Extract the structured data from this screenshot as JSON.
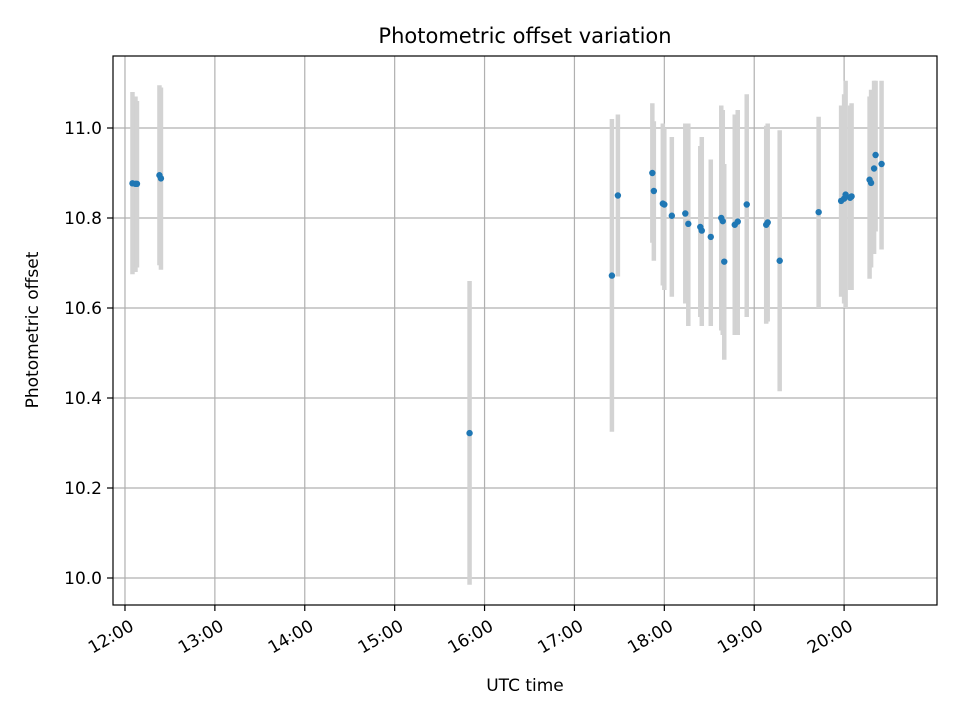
{
  "chart_data": {
    "type": "scatter",
    "title": "Photometric offset variation",
    "xlabel": "UTC time",
    "ylabel": "Photometric offset",
    "grid": true,
    "xlim": [
      "11:52",
      "21:02"
    ],
    "ylim": [
      9.94,
      11.16
    ],
    "x_ticks": [
      "12:00",
      "13:00",
      "14:00",
      "15:00",
      "16:00",
      "17:00",
      "18:00",
      "19:00",
      "20:00"
    ],
    "y_ticks": [
      10.0,
      10.2,
      10.4,
      10.6,
      10.8,
      11.0
    ],
    "y_tick_labels": [
      "10.0",
      "10.2",
      "10.4",
      "10.6",
      "10.8",
      "11.0"
    ],
    "point_color": "#1f77b4",
    "errorbar_color": "#d3d3d3",
    "points": [
      {
        "t": "12:05",
        "y": 10.877,
        "lo": 10.675,
        "hi": 11.08
      },
      {
        "t": "12:07",
        "y": 10.876,
        "lo": 10.68,
        "hi": 11.07
      },
      {
        "t": "12:08",
        "y": 10.876,
        "lo": 10.69,
        "hi": 11.06
      },
      {
        "t": "12:23",
        "y": 10.895,
        "lo": 10.695,
        "hi": 11.095
      },
      {
        "t": "12:24",
        "y": 10.888,
        "lo": 10.685,
        "hi": 11.09
      },
      {
        "t": "15:50",
        "y": 10.322,
        "lo": 9.985,
        "hi": 10.66
      },
      {
        "t": "17:25",
        "y": 10.672,
        "lo": 10.325,
        "hi": 11.02
      },
      {
        "t": "17:29",
        "y": 10.85,
        "lo": 10.67,
        "hi": 11.03
      },
      {
        "t": "17:52",
        "y": 10.9,
        "lo": 10.745,
        "hi": 11.055
      },
      {
        "t": "17:53",
        "y": 10.86,
        "lo": 10.705,
        "hi": 11.015
      },
      {
        "t": "17:59",
        "y": 10.832,
        "lo": 10.65,
        "hi": 11.01
      },
      {
        "t": "18:00",
        "y": 10.83,
        "lo": 10.64,
        "hi": 11.0
      },
      {
        "t": "18:05",
        "y": 10.805,
        "lo": 10.625,
        "hi": 10.98
      },
      {
        "t": "18:14",
        "y": 10.81,
        "lo": 10.61,
        "hi": 11.01
      },
      {
        "t": "18:16",
        "y": 10.787,
        "lo": 10.56,
        "hi": 11.01
      },
      {
        "t": "18:24",
        "y": 10.78,
        "lo": 10.58,
        "hi": 10.96
      },
      {
        "t": "18:25",
        "y": 10.772,
        "lo": 10.56,
        "hi": 10.98
      },
      {
        "t": "18:31",
        "y": 10.758,
        "lo": 10.56,
        "hi": 10.93
      },
      {
        "t": "18:38",
        "y": 10.8,
        "lo": 10.55,
        "hi": 11.05
      },
      {
        "t": "18:39",
        "y": 10.793,
        "lo": 10.54,
        "hi": 11.04
      },
      {
        "t": "18:40",
        "y": 10.703,
        "lo": 10.485,
        "hi": 10.92
      },
      {
        "t": "18:47",
        "y": 10.785,
        "lo": 10.54,
        "hi": 11.03
      },
      {
        "t": "18:49",
        "y": 10.792,
        "lo": 10.54,
        "hi": 11.04
      },
      {
        "t": "18:55",
        "y": 10.83,
        "lo": 10.58,
        "hi": 11.075
      },
      {
        "t": "19:08",
        "y": 10.785,
        "lo": 10.565,
        "hi": 11.005
      },
      {
        "t": "19:09",
        "y": 10.79,
        "lo": 10.57,
        "hi": 11.01
      },
      {
        "t": "19:17",
        "y": 10.705,
        "lo": 10.415,
        "hi": 10.995
      },
      {
        "t": "19:43",
        "y": 10.813,
        "lo": 10.6,
        "hi": 11.025
      },
      {
        "t": "19:58",
        "y": 10.838,
        "lo": 10.625,
        "hi": 11.05
      },
      {
        "t": "20:00",
        "y": 10.843,
        "lo": 10.61,
        "hi": 11.075
      },
      {
        "t": "20:01",
        "y": 10.852,
        "lo": 10.6,
        "hi": 11.105
      },
      {
        "t": "20:04",
        "y": 10.845,
        "lo": 10.64,
        "hi": 11.05
      },
      {
        "t": "20:05",
        "y": 10.848,
        "lo": 10.64,
        "hi": 11.055
      },
      {
        "t": "20:17",
        "y": 10.885,
        "lo": 10.665,
        "hi": 11.07
      },
      {
        "t": "20:18",
        "y": 10.878,
        "lo": 10.69,
        "hi": 11.085
      },
      {
        "t": "20:20",
        "y": 10.91,
        "lo": 10.72,
        "hi": 11.105
      },
      {
        "t": "20:21",
        "y": 10.94,
        "lo": 10.77,
        "hi": 11.105
      },
      {
        "t": "20:25",
        "y": 10.92,
        "lo": 10.73,
        "hi": 11.105
      }
    ]
  }
}
